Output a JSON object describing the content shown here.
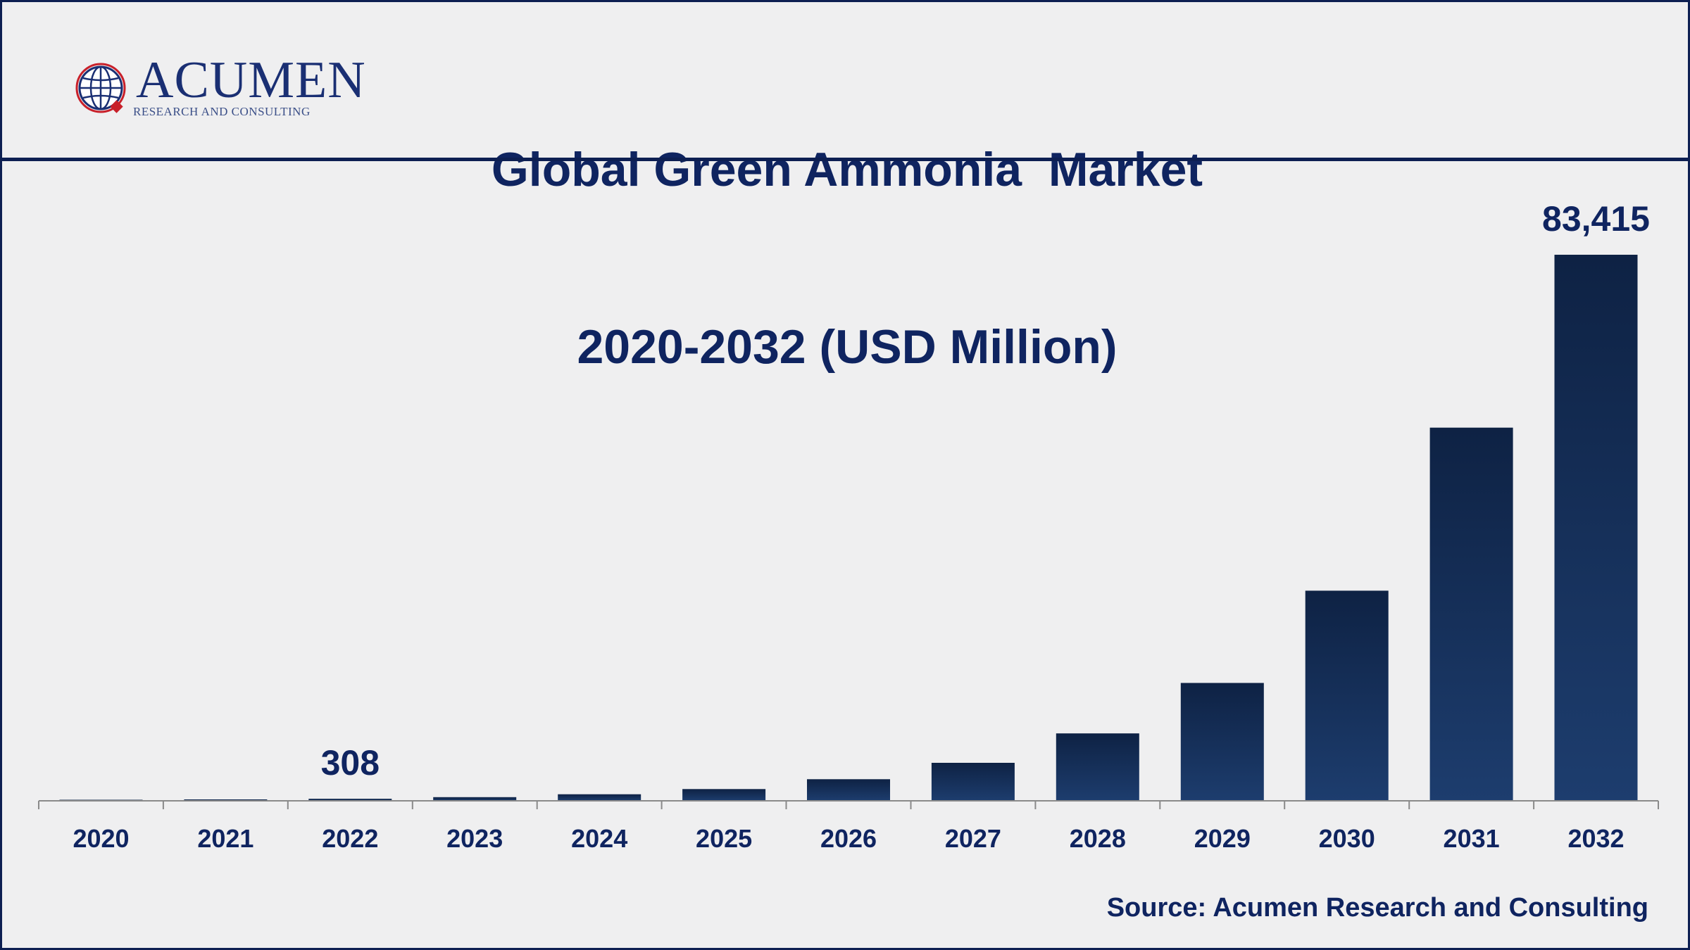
{
  "header": {
    "title_line1": "Global Green Ammonia  Market",
    "title_line2": "2020-2032 (USD Million)"
  },
  "logo": {
    "name": "ACUMEN",
    "tagline": "RESEARCH AND CONSULTING",
    "icon": "globe-icon"
  },
  "colors": {
    "title": "#0f2460",
    "bar_top": "#0e2244",
    "bar_bottom": "#1d3d6e",
    "axis": "#8a8a8a",
    "label": "#0f2460"
  },
  "chart_data": {
    "type": "bar",
    "title": "Global Green Ammonia  Market 2020-2032 (USD Million)",
    "xlabel": "",
    "ylabel": "",
    "categories": [
      "2020",
      "2021",
      "2022",
      "2023",
      "2024",
      "2025",
      "2026",
      "2027",
      "2028",
      "2029",
      "2030",
      "2031",
      "2032"
    ],
    "values": [
      150,
      220,
      308,
      560,
      1000,
      1800,
      3300,
      5800,
      10300,
      18000,
      32100,
      57000,
      83415
    ],
    "data_labels": [
      {
        "category": "2022",
        "text": "308"
      },
      {
        "category": "2032",
        "text": "83,415"
      }
    ],
    "ylim": [
      0,
      83415
    ],
    "grid": false,
    "legend": "none"
  },
  "source": "Source: Acumen Research and Consulting"
}
